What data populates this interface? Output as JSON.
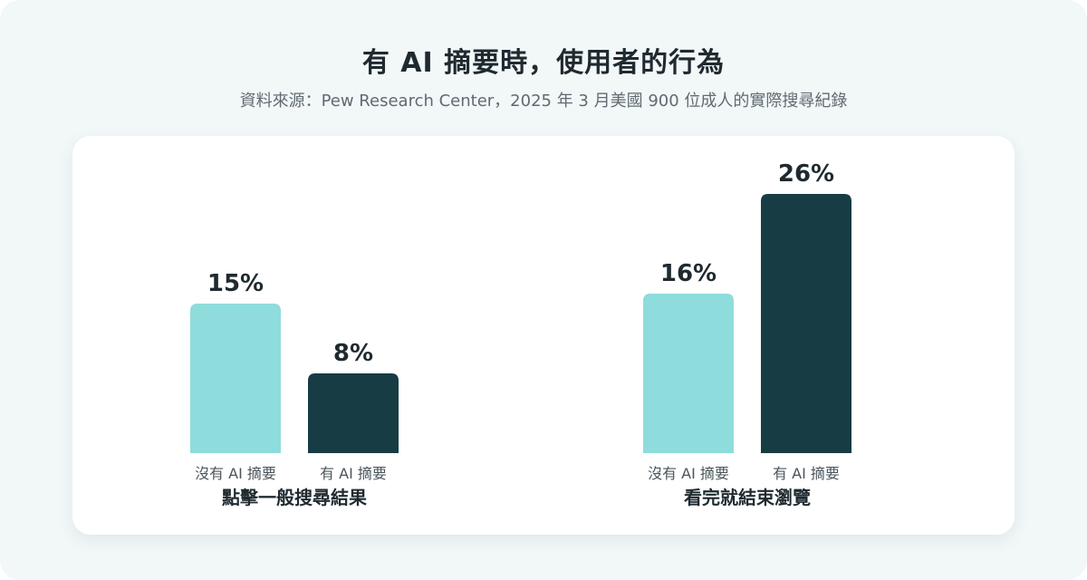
{
  "title": "有 AI 摘要時，使用者的行為",
  "subtitle": "資料來源：Pew Research Center，2025 年 3 月美國 900 位成人的實際搜尋紀錄",
  "colors": {
    "no_ai": "#8fdcdc",
    "with_ai": "#183c44",
    "background": "#f2f7f8",
    "card": "#ffffff"
  },
  "chart_data": {
    "type": "bar",
    "categories": [
      "點擊一般搜尋結果",
      "看完就結束瀏覽"
    ],
    "series": [
      {
        "name": "沒有 AI 摘要",
        "values": [
          15,
          16
        ]
      },
      {
        "name": "有 AI 摘要",
        "values": [
          8,
          26
        ]
      }
    ],
    "unit": "%",
    "ylim": [
      0,
      30
    ],
    "grid": false,
    "legend": "none"
  }
}
